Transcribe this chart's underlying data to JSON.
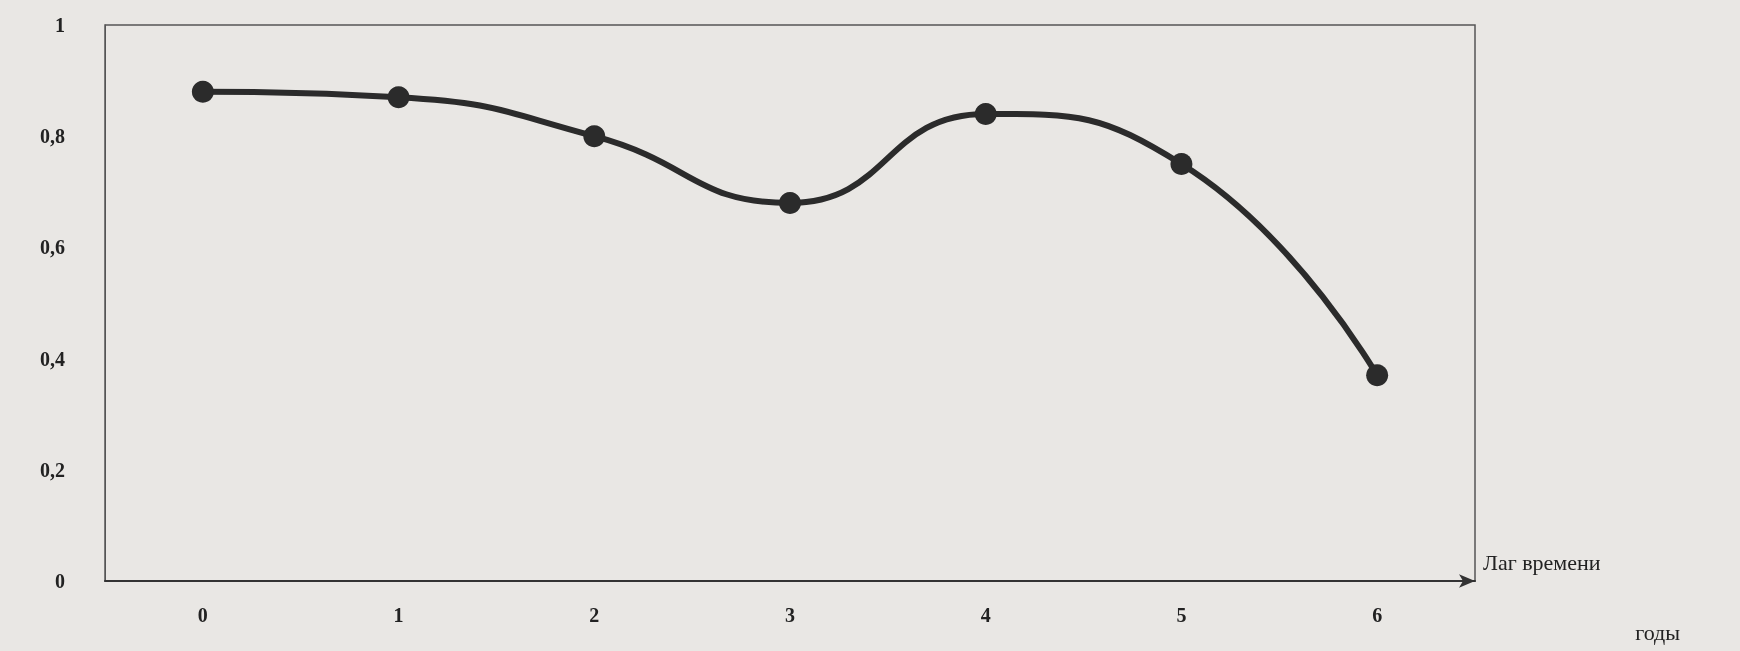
{
  "chart_data": {
    "type": "line",
    "categories": [
      "0",
      "1",
      "2",
      "3",
      "4",
      "5",
      "6"
    ],
    "series": [
      {
        "color": "#2b2b2b",
        "values": [
          0.88,
          0.87,
          0.8,
          0.68,
          0.84,
          0.75,
          0.37
        ]
      }
    ],
    "ylim": [
      0,
      1
    ],
    "yticks": [
      0,
      {
        "value": 0.2,
        "label": "0,2"
      },
      {
        "value": 0.4,
        "label": "0,4"
      },
      {
        "value": 0.6,
        "label": "0,6"
      },
      {
        "value": 0.8,
        "label": "0,8"
      },
      1
    ],
    "xlabel": "Лаг времени",
    "annotations": [
      "годы"
    ],
    "grid": false,
    "marker": "circle",
    "line_style": "solid"
  }
}
